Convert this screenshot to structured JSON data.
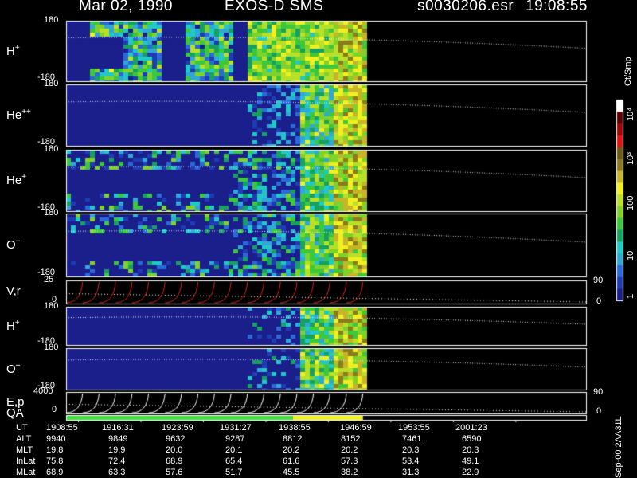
{
  "header": {
    "date": "Mar 02, 1990",
    "mission": "EXOS-D SMS",
    "file": "s0030206.esr",
    "time": "19:08:55"
  },
  "side_labels": {
    "unit": "Ct/Smp",
    "id": "Sep-00 2AA31L"
  },
  "colorbar": {
    "colors": [
      "#1a1f8c",
      "#1e3cb4",
      "#2a6ad8",
      "#2fa8d8",
      "#20c8c8",
      "#18a060",
      "#3cc83c",
      "#7fd22a",
      "#b8e028",
      "#f0f020",
      "#c8b428",
      "#8c7a1e",
      "#6e5a14",
      "#e01414",
      "#a00808",
      "#600000",
      "#ffffff"
    ],
    "labels": [
      "1",
      "10",
      "100",
      "10³",
      "10⁴"
    ],
    "label_levels": [
      0,
      1,
      2,
      3,
      4
    ]
  },
  "chart_data": {
    "type": "heatmap",
    "time_axis": {
      "label": "UT",
      "ticks": [
        "1908:55",
        "1916:31",
        "1923:59",
        "1931:27",
        "1938:55",
        "1946:59",
        "1953:55",
        "2001:23"
      ]
    },
    "data_end_fraction": 0.57,
    "panels": [
      {
        "label": "H",
        "sup": "+",
        "kind": "spectrogram",
        "ymin": "-180",
        "ymax": "180",
        "bg": "#1a1f8c"
      },
      {
        "label": "He",
        "sup": "++",
        "kind": "spectrogram",
        "ymin": "-180",
        "ymax": "180",
        "bg": "#1a1f8c"
      },
      {
        "label": "He",
        "sup": "+",
        "kind": "spectrogram",
        "ymin": "-180",
        "ymax": "180",
        "bg": "#1a1f8c"
      },
      {
        "label": "O",
        "sup": "+",
        "kind": "spectrogram",
        "ymin": "-180",
        "ymax": "180",
        "bg": "#1a1f8c"
      },
      {
        "label": "V,r",
        "sup": "",
        "kind": "line",
        "ymin": "0",
        "ymax": "25",
        "rmin": "0",
        "rmax": "90"
      },
      {
        "label": "H",
        "sup": "+",
        "kind": "spectrogram",
        "ymin": "-180",
        "ymax": "180",
        "bg": "#1a1f8c"
      },
      {
        "label": "O",
        "sup": "+",
        "kind": "spectrogram",
        "ymin": "-180",
        "ymax": "180",
        "bg": "#1a1f8c"
      },
      {
        "label": "E,p",
        "sup": "",
        "kind": "line",
        "ymin": "0",
        "ymax": "4000",
        "rmin": "0",
        "rmax": "90"
      }
    ],
    "qa": {
      "label": "QA",
      "segments": [
        {
          "from": 0,
          "to": 0.435,
          "color": "#40e040"
        },
        {
          "from": 0.435,
          "to": 0.57,
          "color": "#f0f020"
        }
      ]
    }
  },
  "ephemeris": {
    "rows": [
      {
        "name": "ALT",
        "values": [
          "9940",
          "9849",
          "9632",
          "9287",
          "8812",
          "8152",
          "7461",
          "6590"
        ]
      },
      {
        "name": "MLT",
        "values": [
          "19.8",
          "19.9",
          "20.0",
          "20.1",
          "20.2",
          "20.2",
          "20.3",
          "20.3"
        ]
      },
      {
        "name": "InLat",
        "values": [
          "75.8",
          "72.4",
          "68.9",
          "65.4",
          "61.6",
          "57.3",
          "53.4",
          "49.1"
        ]
      },
      {
        "name": "MLat",
        "values": [
          "68.9",
          "63.3",
          "57.6",
          "51.7",
          "45.5",
          "38.2",
          "31.3",
          "22.9"
        ]
      }
    ]
  }
}
